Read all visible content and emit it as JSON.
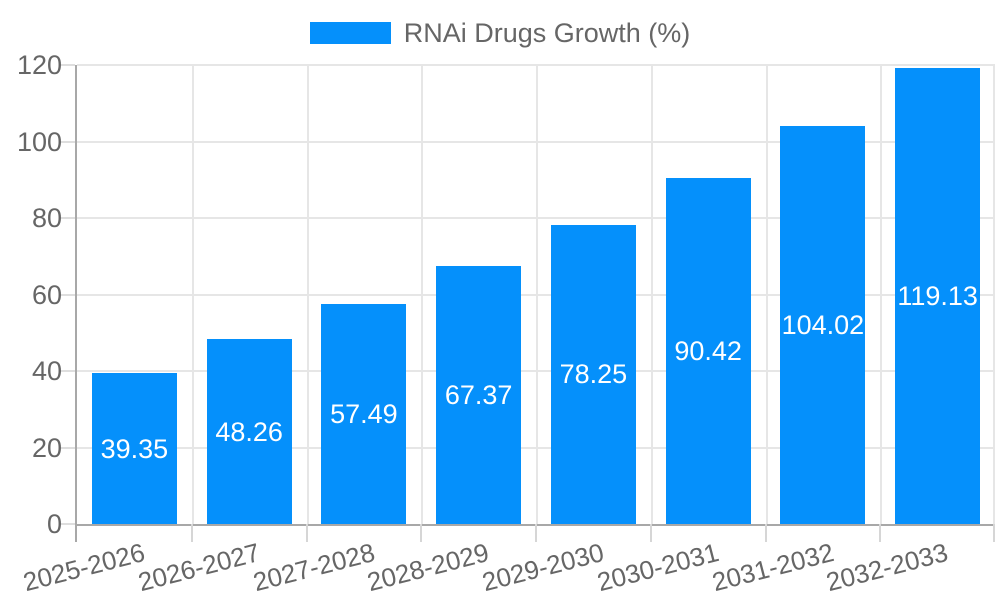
{
  "chart_data": {
    "type": "bar",
    "title": "",
    "legend": {
      "position": "top",
      "label": "RNAi Drugs Growth (%)"
    },
    "categories": [
      "2025-2026",
      "2026-2027",
      "2027-2028",
      "2028-2029",
      "2029-2030",
      "2030-2031",
      "2031-2032",
      "2032-2033"
    ],
    "series": [
      {
        "name": "RNAi Drugs Growth (%)",
        "values": [
          39.35,
          48.26,
          57.49,
          67.37,
          78.25,
          90.42,
          104.02,
          119.13
        ],
        "value_labels": [
          "39.35",
          "48.26",
          "57.49",
          "67.37",
          "78.25",
          "90.42",
          "104.02",
          "119.13"
        ]
      }
    ],
    "xlabel": "",
    "ylabel": "",
    "ylim": [
      0,
      120
    ],
    "yticks": [
      0,
      20,
      40,
      60,
      80,
      100,
      120
    ],
    "grid": true,
    "colors": {
      "bar": "#0590fb",
      "value_label": "#ffffff",
      "axis_text": "#666666",
      "gridline": "#e6e6e6",
      "axis_line": "#a8a8a8",
      "background": "#ffffff"
    }
  }
}
